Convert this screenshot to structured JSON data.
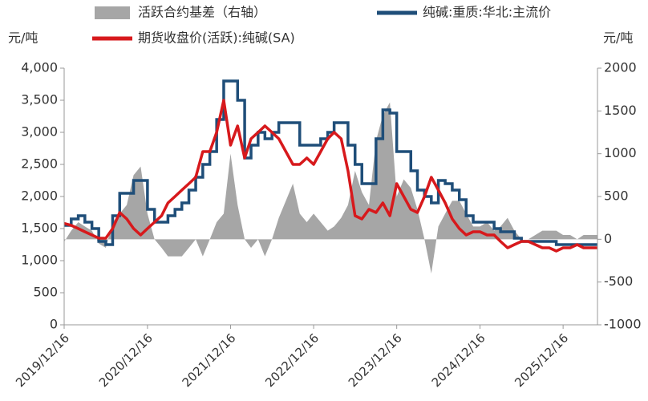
{
  "chart_data": {
    "type": "line",
    "y_label": "元/吨",
    "y2_label": "元/吨",
    "x": [
      "2019/12/16",
      "2020/01/16",
      "2020/02/16",
      "2020/03/16",
      "2020/04/16",
      "2020/05/16",
      "2020/06/16",
      "2020/07/16",
      "2020/08/16",
      "2020/09/16",
      "2020/10/16",
      "2020/11/16",
      "2020/12/16",
      "2021/01/16",
      "2021/02/16",
      "2021/03/16",
      "2021/04/16",
      "2021/05/16",
      "2021/06/16",
      "2021/07/16",
      "2021/08/16",
      "2021/09/16",
      "2021/10/16",
      "2021/11/16",
      "2021/12/16",
      "2022/01/16",
      "2022/02/16",
      "2022/03/16",
      "2022/04/16",
      "2022/05/16",
      "2022/06/16",
      "2022/07/16",
      "2022/08/16",
      "2022/09/16",
      "2022/10/16",
      "2022/11/16",
      "2022/12/16",
      "2023/01/16",
      "2023/02/16",
      "2023/03/16",
      "2023/04/16",
      "2023/05/16",
      "2023/06/16",
      "2023/07/16",
      "2023/08/16",
      "2023/09/16",
      "2023/10/16",
      "2023/11/16",
      "2023/12/16",
      "2024/01/16",
      "2024/02/16",
      "2024/03/16",
      "2024/04/16",
      "2024/05/16",
      "2024/06/16",
      "2024/07/16",
      "2024/08/16",
      "2024/09/16",
      "2024/10/16",
      "2024/11/16",
      "2024/12/16",
      "2025/01/16",
      "2025/02/16",
      "2025/03/16",
      "2025/04/16",
      "2025/05/16",
      "2025/06/16",
      "2025/07/16",
      "2025/08/16",
      "2025/09/16",
      "2025/10/16",
      "2025/11/16",
      "2025/12/16",
      "2026/01/16",
      "2026/02/16",
      "2026/03/16",
      "2026/04/16",
      "2026/05/16"
    ],
    "xlim": [
      "2019/12/16",
      "2026/05/16"
    ],
    "xticks": [
      "2019/12/16",
      "2020/12/16",
      "2021/12/16",
      "2022/12/16",
      "2023/12/16",
      "2024/12/16",
      "2025/12/16"
    ],
    "ylim": [
      0,
      4000
    ],
    "yticks": [
      0,
      500,
      {
        "value": 1000,
        "label": "1,000"
      },
      {
        "value": 1500,
        "label": "1,500"
      },
      {
        "value": 2000,
        "label": "2,000"
      },
      {
        "value": 2500,
        "label": "2,500"
      },
      {
        "value": 3000,
        "label": "3,000"
      },
      {
        "value": 3500,
        "label": "3,500"
      },
      {
        "value": 4000,
        "label": "4,000"
      }
    ],
    "y2lim": [
      -1000,
      2000
    ],
    "y2ticks": [
      -1000,
      -500,
      0,
      500,
      1000,
      1500,
      2000
    ],
    "series": [
      {
        "name": "活跃合约基差（右轴）",
        "color": "#a6a6a6",
        "axis": "y2",
        "kind": "area",
        "values": [
          -30,
          100,
          200,
          150,
          100,
          -50,
          -100,
          200,
          300,
          400,
          750,
          850,
          300,
          0,
          -100,
          -200,
          -200,
          -200,
          -100,
          0,
          -200,
          0,
          200,
          300,
          1000,
          400,
          0,
          -100,
          0,
          -200,
          0,
          250,
          450,
          650,
          300,
          200,
          300,
          200,
          100,
          150,
          250,
          400,
          800,
          550,
          400,
          1150,
          1450,
          1600,
          500,
          700,
          600,
          350,
          0,
          -400,
          150,
          300,
          450,
          450,
          300,
          150,
          150,
          200,
          100,
          150,
          250,
          100,
          0,
          0,
          50,
          100,
          100,
          100,
          50,
          50,
          0,
          50,
          50,
          50
        ]
      },
      {
        "name": "纯碱:重质:华北:主流价",
        "color": "#1f4e79",
        "kind": "step",
        "values": [
          1550,
          1650,
          1700,
          1600,
          1500,
          1300,
          1250,
          1700,
          2050,
          2050,
          2250,
          2250,
          1800,
          1600,
          1600,
          1700,
          1800,
          1900,
          2100,
          2300,
          2500,
          2700,
          3200,
          3800,
          3800,
          3500,
          2600,
          2800,
          3000,
          2900,
          3000,
          3150,
          3150,
          3150,
          2800,
          2800,
          2800,
          2900,
          3000,
          3150,
          3150,
          2800,
          2500,
          2200,
          2200,
          2900,
          3350,
          3300,
          2700,
          2700,
          2400,
          2100,
          2000,
          1900,
          2250,
          2200,
          2100,
          1950,
          1700,
          1600,
          1600,
          1600,
          1500,
          1450,
          1450,
          1350,
          1300,
          1300,
          1300,
          1300,
          1300,
          1250,
          1250,
          1250,
          1250,
          1250,
          1250,
          1250
        ]
      },
      {
        "name": "期货收盘价(活跃):纯碱(SA)",
        "color": "#d7191c",
        "kind": "line",
        "values": [
          1580,
          1550,
          1500,
          1450,
          1400,
          1350,
          1350,
          1500,
          1750,
          1650,
          1500,
          1400,
          1500,
          1600,
          1700,
          1900,
          2000,
          2100,
          2200,
          2300,
          2700,
          2700,
          3000,
          3500,
          2800,
          3100,
          2600,
          2900,
          3000,
          3100,
          3000,
          2900,
          2700,
          2500,
          2500,
          2600,
          2500,
          2700,
          2900,
          3000,
          2900,
          2400,
          1700,
          1650,
          1800,
          1750,
          1900,
          1700,
          2200,
          2000,
          1800,
          1750,
          2000,
          2300,
          2100,
          1900,
          1650,
          1500,
          1400,
          1450,
          1450,
          1400,
          1400,
          1300,
          1200,
          1250,
          1300,
          1300,
          1250,
          1200,
          1200,
          1150,
          1200,
          1200,
          1250,
          1200,
          1200,
          1200
        ]
      }
    ]
  }
}
